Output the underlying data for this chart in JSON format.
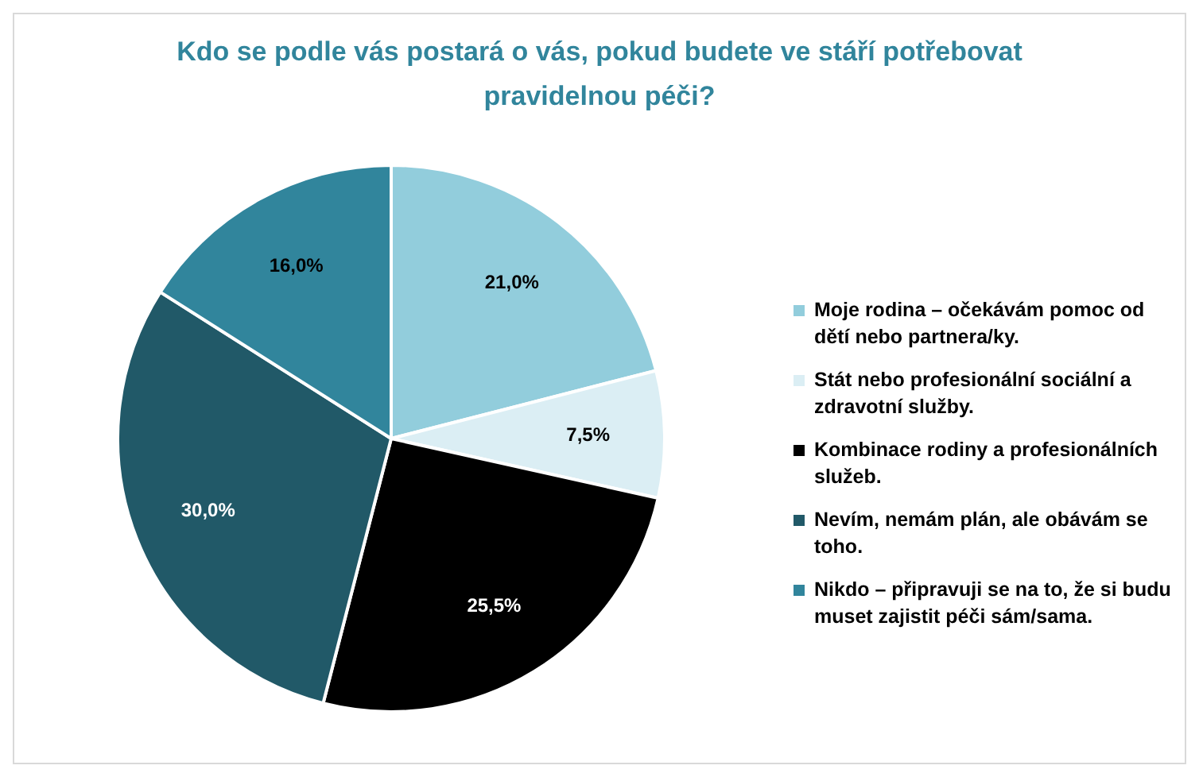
{
  "chart_data": {
    "type": "pie",
    "title": "Kdo se podle vás postará o vás, pokud budete ve stáří potřebovat pravidelnou péči?",
    "categories": [
      "Moje rodina – očekávám pomoc od dětí nebo partnera/ky.",
      "Stát nebo profesionální sociální a zdravotní služby.",
      "Kombinace rodiny a profesionálních služeb.",
      "Nevím, nemám plán, ale obávám se toho.",
      "Nikdo – připravuji se na to, že si budu muset zajistit péči sám/sama."
    ],
    "values": [
      21.0,
      7.5,
      25.5,
      30.0,
      16.0
    ],
    "value_labels": [
      "21,0%",
      "7,5%",
      "25,5%",
      "30,0%",
      "16,0%"
    ],
    "colors": [
      "#92cddc",
      "#dbeef4",
      "#000000",
      "#215968",
      "#31859c"
    ],
    "legend": "right"
  }
}
